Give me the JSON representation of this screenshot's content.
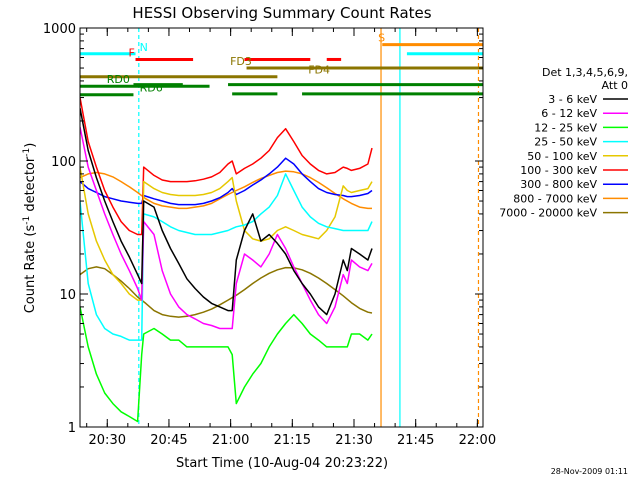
{
  "chart_data": {
    "type": "line",
    "title": "HESSI Observing Summary Count Rates",
    "xlabel": "Start Time (10-Aug-04 20:23:22)",
    "ylabel": "Count Rate (s",
    "ylabel_sup": "-1",
    "ylabel_tail": " detector",
    "ylabel_end": ")",
    "y_scale": "log",
    "xlim_minutes": [
      0,
      98
    ],
    "ylim": [
      1,
      1000
    ],
    "x_ticks": [
      {
        "label": "20:30",
        "t": 6.63
      },
      {
        "label": "20:45",
        "t": 21.63
      },
      {
        "label": "21:00",
        "t": 36.63
      },
      {
        "label": "21:15",
        "t": 51.63
      },
      {
        "label": "21:30",
        "t": 66.63
      },
      {
        "label": "21:45",
        "t": 81.63
      },
      {
        "label": "22:00",
        "t": 96.63
      }
    ],
    "y_ticks": [
      {
        "label": "1",
        "v": 1
      },
      {
        "label": "10",
        "v": 10
      },
      {
        "label": "100",
        "v": 100
      },
      {
        "label": "1000",
        "v": 1000
      }
    ],
    "legend_header": [
      "Det 1,3,4,5,6,9,",
      "Att 0"
    ],
    "legend_position": "right",
    "timestamp": "28-Nov-2009 01:11",
    "series": [
      {
        "name": "3 - 6 keV",
        "color": "#000000",
        "t": [
          0,
          2,
          4,
          6,
          8,
          10,
          12,
          14,
          15,
          15.5,
          18,
          20,
          22,
          24,
          26,
          28,
          30,
          32,
          34,
          36,
          37,
          38,
          40,
          42,
          44,
          46,
          48,
          50,
          52,
          54,
          56,
          58,
          60,
          62,
          64,
          65,
          66,
          68,
          70,
          71
        ],
        "v": [
          250,
          120,
          75,
          50,
          35,
          25,
          19,
          14,
          12,
          50,
          45,
          30,
          22,
          17,
          13,
          11,
          9.5,
          8.5,
          8,
          7.5,
          7.5,
          18,
          30,
          40,
          25,
          28,
          24,
          20,
          15,
          12,
          10,
          8,
          7,
          10,
          18,
          15,
          22,
          20,
          18,
          22
        ]
      },
      {
        "name": "6 - 12 keV",
        "color": "#ff00ff",
        "t": [
          0,
          2,
          4,
          6,
          8,
          10,
          12,
          14,
          15,
          15.5,
          18,
          20,
          22,
          24,
          26,
          28,
          30,
          32,
          34,
          36,
          37,
          38,
          40,
          42,
          44,
          46,
          48,
          50,
          52,
          54,
          56,
          58,
          60,
          62,
          64,
          65,
          66,
          68,
          70,
          71
        ],
        "v": [
          180,
          90,
          60,
          40,
          28,
          20,
          15,
          11,
          9,
          35,
          28,
          15,
          10,
          8,
          7,
          6.5,
          6,
          5.8,
          5.5,
          5.5,
          5.5,
          12,
          20,
          18,
          16,
          20,
          28,
          22,
          16,
          12,
          9,
          7,
          6,
          8,
          14,
          12,
          18,
          16,
          15,
          17
        ]
      },
      {
        "name": "12 - 25 keV",
        "color": "#00ff00",
        "t": [
          0,
          2,
          4,
          6,
          8,
          10,
          12,
          14,
          15,
          15.5,
          18,
          20,
          22,
          24,
          26,
          28,
          30,
          32,
          34,
          36,
          37,
          38,
          40,
          42,
          44,
          46,
          48,
          50,
          52,
          54,
          56,
          58,
          60,
          62,
          64,
          65,
          66,
          68,
          70,
          71
        ],
        "v": [
          8,
          4,
          2.5,
          1.8,
          1.5,
          1.3,
          1.2,
          1.1,
          3.5,
          5,
          5.5,
          5,
          4.5,
          4.5,
          4,
          4,
          4,
          4,
          4,
          4,
          3.5,
          1.5,
          2,
          2.5,
          3,
          4,
          5,
          6,
          7,
          6,
          5,
          4.5,
          4,
          4,
          4,
          4,
          5,
          5,
          4.5,
          5
        ]
      },
      {
        "name": "25 - 50 keV",
        "color": "#00ffff",
        "t": [
          0,
          2,
          4,
          6,
          8,
          10,
          12,
          14,
          15,
          15.5,
          18,
          20,
          22,
          24,
          26,
          28,
          30,
          32,
          34,
          36,
          37,
          38,
          40,
          42,
          44,
          46,
          48,
          50,
          52,
          54,
          56,
          58,
          60,
          62,
          64,
          65,
          66,
          68,
          70,
          71
        ],
        "v": [
          50,
          12,
          7,
          5.5,
          5,
          4.8,
          4.5,
          4.5,
          4.5,
          40,
          38,
          35,
          32,
          30,
          29,
          28,
          28,
          28,
          29,
          30,
          31,
          32,
          33,
          35,
          40,
          45,
          55,
          80,
          60,
          45,
          38,
          34,
          32,
          31,
          30,
          30,
          30,
          30,
          30,
          35
        ]
      },
      {
        "name": "50 - 100 keV",
        "color": "#e6c800",
        "t": [
          0,
          2,
          4,
          6,
          8,
          10,
          12,
          14,
          15,
          15.5,
          18,
          20,
          22,
          24,
          26,
          28,
          30,
          32,
          34,
          36,
          37,
          38,
          40,
          42,
          44,
          46,
          48,
          50,
          52,
          54,
          56,
          58,
          60,
          62,
          64,
          65,
          66,
          68,
          70,
          71
        ],
        "v": [
          90,
          40,
          25,
          18,
          14,
          12,
          10,
          9,
          9,
          70,
          62,
          58,
          56,
          55,
          55,
          55,
          56,
          58,
          62,
          70,
          75,
          50,
          30,
          26,
          25,
          26,
          30,
          32,
          30,
          28,
          27,
          26,
          30,
          38,
          65,
          60,
          58,
          60,
          62,
          70
        ]
      },
      {
        "name": "100 - 300 keV",
        "color": "#ff0000",
        "t": [
          0,
          2,
          4,
          6,
          8,
          10,
          12,
          14,
          15,
          15.5,
          18,
          20,
          22,
          24,
          26,
          28,
          30,
          32,
          34,
          36,
          37,
          38,
          40,
          42,
          44,
          46,
          48,
          50,
          52,
          54,
          56,
          58,
          60,
          62,
          64,
          65,
          66,
          68,
          70,
          71
        ],
        "v": [
          300,
          140,
          90,
          60,
          45,
          35,
          30,
          28,
          28,
          90,
          78,
          72,
          70,
          70,
          70,
          71,
          73,
          76,
          82,
          95,
          100,
          80,
          88,
          95,
          105,
          120,
          150,
          175,
          140,
          110,
          95,
          85,
          80,
          82,
          90,
          88,
          85,
          88,
          95,
          125
        ]
      },
      {
        "name": "300 - 800 keV",
        "color": "#0000ff",
        "t": [
          0,
          2,
          4,
          6,
          8,
          10,
          12,
          14,
          15,
          15.5,
          18,
          20,
          22,
          24,
          26,
          28,
          30,
          32,
          34,
          36,
          37,
          38,
          40,
          42,
          44,
          46,
          48,
          50,
          52,
          54,
          56,
          58,
          60,
          62,
          64,
          65,
          66,
          68,
          70,
          71
        ],
        "v": [
          70,
          62,
          58,
          54,
          52,
          50,
          49,
          48,
          48,
          55,
          52,
          50,
          48,
          47,
          47,
          47,
          48,
          50,
          53,
          58,
          62,
          56,
          60,
          66,
          72,
          80,
          90,
          105,
          95,
          80,
          70,
          62,
          58,
          56,
          55,
          54,
          54,
          55,
          57,
          60
        ]
      },
      {
        "name": "800 - 7000 keV",
        "color": "#ff8c00",
        "t": [
          0,
          2,
          4,
          6,
          8,
          10,
          12,
          14,
          16,
          18,
          20,
          22,
          24,
          26,
          28,
          30,
          32,
          34,
          36,
          38,
          40,
          42,
          44,
          46,
          48,
          50,
          52,
          54,
          56,
          58,
          60,
          62,
          64,
          66,
          68,
          70,
          71
        ],
        "v": [
          75,
          80,
          82,
          80,
          76,
          70,
          64,
          58,
          52,
          48,
          46,
          45,
          44,
          44,
          45,
          46,
          48,
          52,
          56,
          60,
          64,
          69,
          74,
          78,
          82,
          84,
          83,
          80,
          75,
          69,
          63,
          57,
          52,
          48,
          45,
          44,
          44
        ]
      },
      {
        "name": "7000 - 20000 keV",
        "color": "#8b7500",
        "t": [
          0,
          2,
          4,
          6,
          8,
          10,
          12,
          14,
          16,
          18,
          20,
          22,
          24,
          26,
          28,
          30,
          32,
          34,
          36,
          38,
          40,
          42,
          44,
          46,
          48,
          50,
          52,
          54,
          56,
          58,
          60,
          62,
          64,
          66,
          68,
          70,
          71
        ],
        "v": [
          14,
          15.5,
          16,
          15.5,
          14,
          12.5,
          11,
          9.5,
          8.5,
          7.5,
          7,
          6.8,
          6.7,
          6.8,
          7,
          7.3,
          7.7,
          8.3,
          9,
          9.8,
          10.8,
          12,
          13.2,
          14.3,
          15.2,
          15.8,
          15.7,
          15.2,
          14.3,
          13.2,
          12,
          10.8,
          9.7,
          8.6,
          7.8,
          7.3,
          7.2
        ]
      }
    ],
    "flag_bars": [
      {
        "label": "N",
        "color": "#00ffff",
        "level": 640,
        "label_t": 14.5,
        "segments": [
          [
            0,
            13.5
          ],
          [
            79.5,
            98
          ]
        ]
      },
      {
        "label": "F",
        "color": "#ff0000",
        "level": 580,
        "label_t": 11.8,
        "segments": [
          [
            13.5,
            27.5
          ],
          [
            40,
            56
          ],
          [
            60,
            63.5
          ]
        ]
      },
      {
        "label": "S",
        "color": "#ff8c00",
        "level": 750,
        "label_t": 72.5,
        "segments": [
          [
            73.5,
            98
          ]
        ]
      },
      {
        "label": "FD3",
        "color": "#8b7500",
        "level": 500,
        "label_t": 36.5,
        "segments": [
          [
            40.5,
            98
          ]
        ]
      },
      {
        "label": "FD4",
        "color": "#8b7500",
        "level": 430,
        "label_t": 55.5,
        "segments": [
          [
            0,
            48
          ]
        ]
      },
      {
        "label": "RD0",
        "color": "#008000",
        "level": 365,
        "label_t": 6.5,
        "segments": [
          [
            0,
            31.5
          ]
        ]
      },
      {
        "label": "RD6",
        "color": "#008000",
        "level": 315,
        "label_t": 14.5,
        "segments": [
          [
            0,
            13
          ]
        ]
      },
      {
        "label": "",
        "color": "#008000",
        "level": 375,
        "label_t": 0,
        "segments": [
          [
            13,
            25
          ],
          [
            36,
            98
          ]
        ]
      },
      {
        "label": "",
        "color": "#008000",
        "level": 320,
        "label_t": 0,
        "segments": [
          [
            37,
            48
          ],
          [
            54,
            98
          ]
        ]
      }
    ],
    "vlines": [
      {
        "t": 14.3,
        "color": "#00ffff",
        "style": "dashed"
      },
      {
        "t": 73.2,
        "color": "#ff8c00",
        "style": "solid"
      },
      {
        "t": 77.8,
        "color": "#00ffff",
        "style": "solid"
      },
      {
        "t": 96.9,
        "color": "#ff8c00",
        "style": "dashed"
      }
    ]
  }
}
